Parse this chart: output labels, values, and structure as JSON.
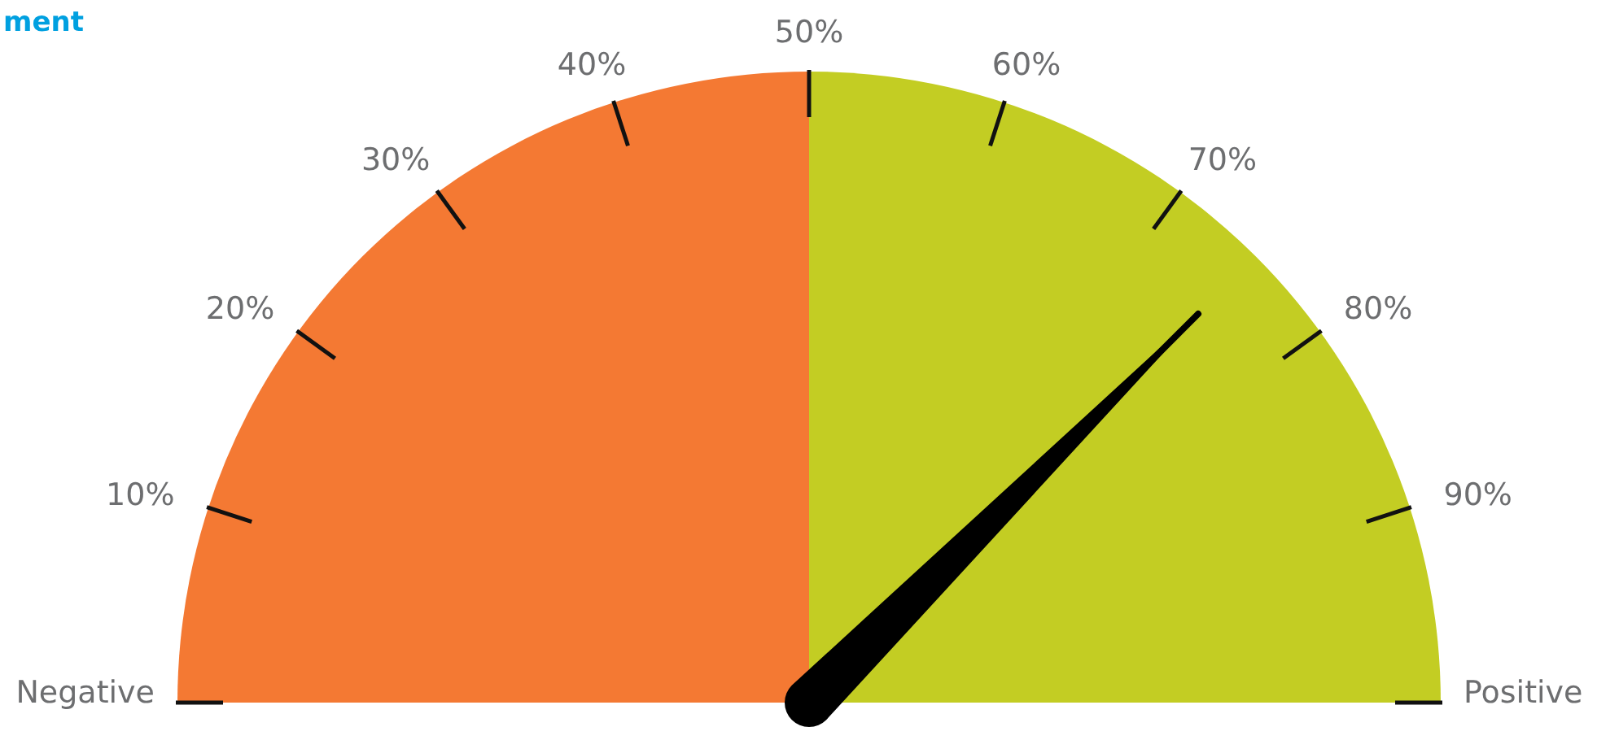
{
  "chart_data": {
    "type": "pie",
    "title": "ment",
    "categories": [
      "Negative",
      "Positive"
    ],
    "values": [
      50,
      50
    ],
    "colors": [
      "#f47933",
      "#c3cd23"
    ],
    "needle": "Positive",
    "annotations": [
      "10%",
      "20%",
      "30%",
      "40%",
      "50%",
      "60%",
      "70%",
      "80%",
      "90%"
    ]
  }
}
